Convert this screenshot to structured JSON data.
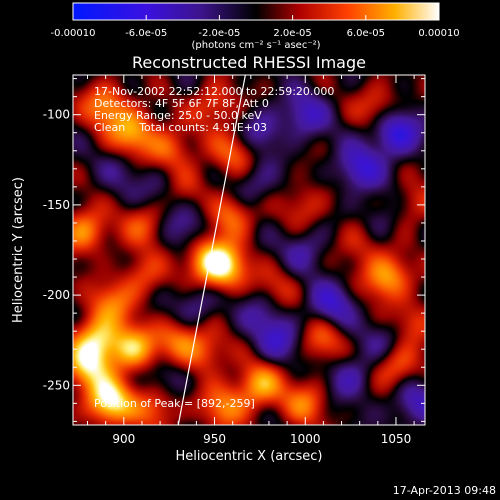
{
  "chart_data": {
    "type": "heatmap",
    "title": "Reconstructed RHESSI Image",
    "xlabel": "Heliocentric X (arcsec)",
    "ylabel": "Heliocentric Y (arcsec)",
    "xlim": [
      872,
      1066
    ],
    "ylim": [
      -272,
      -78
    ],
    "x_ticks": [
      900,
      950,
      1000,
      1050
    ],
    "x_tick_labels": [
      "900",
      "950",
      "1000",
      "1050"
    ],
    "y_ticks": [
      -100,
      -150,
      -200,
      -250
    ],
    "y_tick_labels": [
      "-100",
      "-150",
      "-200",
      "-250"
    ],
    "colorbar": {
      "range": [
        -0.0001,
        0.0001
      ],
      "tick_labels": [
        "-0.00010",
        "-6.0e-05",
        "-2.0e-05",
        "2.0e-05",
        "6.0e-05",
        "0.00010"
      ],
      "tick_values": [
        -0.0001,
        -6e-05,
        -2e-05,
        2e-05,
        6e-05,
        0.0001
      ],
      "unit_label": "(photons cm⁻² s⁻¹ asec⁻²)"
    },
    "annotations": [
      "17-Nov-2002 22:52:12.000 to 22:59:20.000",
      "Detectors: 4F 5F 6F 7F 8F, Att 0",
      "Energy Range: 25.0 - 50.0 keV",
      "Clean    Total counts: 4.91E+03",
      "Position of Peak = [892,-259]"
    ],
    "peak": {
      "x": 892,
      "y": -259
    },
    "limb_line": [
      [
        930,
        -272
      ],
      [
        967,
        -78
      ]
    ],
    "blobs": [
      {
        "x": 892,
        "y": -259,
        "v": 1.0
      },
      {
        "x": 880,
        "y": -240,
        "v": 0.7
      },
      {
        "x": 905,
        "y": -230,
        "v": 0.75
      },
      {
        "x": 885,
        "y": -225,
        "v": 0.8
      },
      {
        "x": 893,
        "y": -205,
        "v": 0.5
      },
      {
        "x": 930,
        "y": -225,
        "v": 0.55
      },
      {
        "x": 945,
        "y": -232,
        "v": 0.45
      },
      {
        "x": 955,
        "y": -185,
        "v": 0.85
      },
      {
        "x": 945,
        "y": -180,
        "v": 0.6
      },
      {
        "x": 960,
        "y": -155,
        "v": 0.6
      },
      {
        "x": 962,
        "y": -120,
        "v": 0.5
      },
      {
        "x": 950,
        "y": -95,
        "v": 0.45
      },
      {
        "x": 925,
        "y": -120,
        "v": 0.5
      },
      {
        "x": 905,
        "y": -110,
        "v": 0.7
      },
      {
        "x": 890,
        "y": -95,
        "v": 0.6
      },
      {
        "x": 912,
        "y": -160,
        "v": 0.45
      },
      {
        "x": 878,
        "y": -165,
        "v": 0.65
      },
      {
        "x": 910,
        "y": -190,
        "v": 0.4
      },
      {
        "x": 935,
        "y": -140,
        "v": 0.35
      },
      {
        "x": 918,
        "y": -262,
        "v": 0.5
      },
      {
        "x": 955,
        "y": -262,
        "v": 0.55
      },
      {
        "x": 975,
        "y": -250,
        "v": 0.7
      },
      {
        "x": 1045,
        "y": -190,
        "v": 0.75
      },
      {
        "x": 1050,
        "y": -240,
        "v": 0.55
      },
      {
        "x": 1000,
        "y": -260,
        "v": 0.5
      },
      {
        "x": 1010,
        "y": -225,
        "v": 0.45
      },
      {
        "x": 1060,
        "y": -215,
        "v": 0.4
      },
      {
        "x": 1030,
        "y": -170,
        "v": 0.4
      },
      {
        "x": 1040,
        "y": -95,
        "v": 0.4
      },
      {
        "x": 1000,
        "y": -150,
        "v": 0.35
      },
      {
        "x": 985,
        "y": -195,
        "v": 0.3
      },
      {
        "x": 1060,
        "y": -150,
        "v": 0.35
      },
      {
        "x": 975,
        "y": -110,
        "v": -0.4
      },
      {
        "x": 1000,
        "y": -175,
        "v": -0.35
      },
      {
        "x": 1050,
        "y": -110,
        "v": -0.7
      },
      {
        "x": 1030,
        "y": -130,
        "v": -0.55
      },
      {
        "x": 1000,
        "y": -100,
        "v": -0.45
      },
      {
        "x": 1015,
        "y": -205,
        "v": -0.5
      },
      {
        "x": 1060,
        "y": -260,
        "v": -0.45
      },
      {
        "x": 985,
        "y": -225,
        "v": -0.45
      },
      {
        "x": 1025,
        "y": -245,
        "v": -0.4
      },
      {
        "x": 940,
        "y": -205,
        "v": -0.35
      },
      {
        "x": 920,
        "y": -140,
        "v": -0.3
      },
      {
        "x": 935,
        "y": -160,
        "v": -0.4
      },
      {
        "x": 925,
        "y": -245,
        "v": -0.3
      },
      {
        "x": 900,
        "y": -130,
        "v": -0.2
      },
      {
        "x": 970,
        "y": -140,
        "v": -0.35
      },
      {
        "x": 1040,
        "y": -160,
        "v": -0.3
      },
      {
        "x": 975,
        "y": -210,
        "v": -0.25
      },
      {
        "x": 1045,
        "y": -225,
        "v": -0.3
      }
    ]
  },
  "footer": {
    "timestamp": "17-Apr-2013 09:48"
  }
}
